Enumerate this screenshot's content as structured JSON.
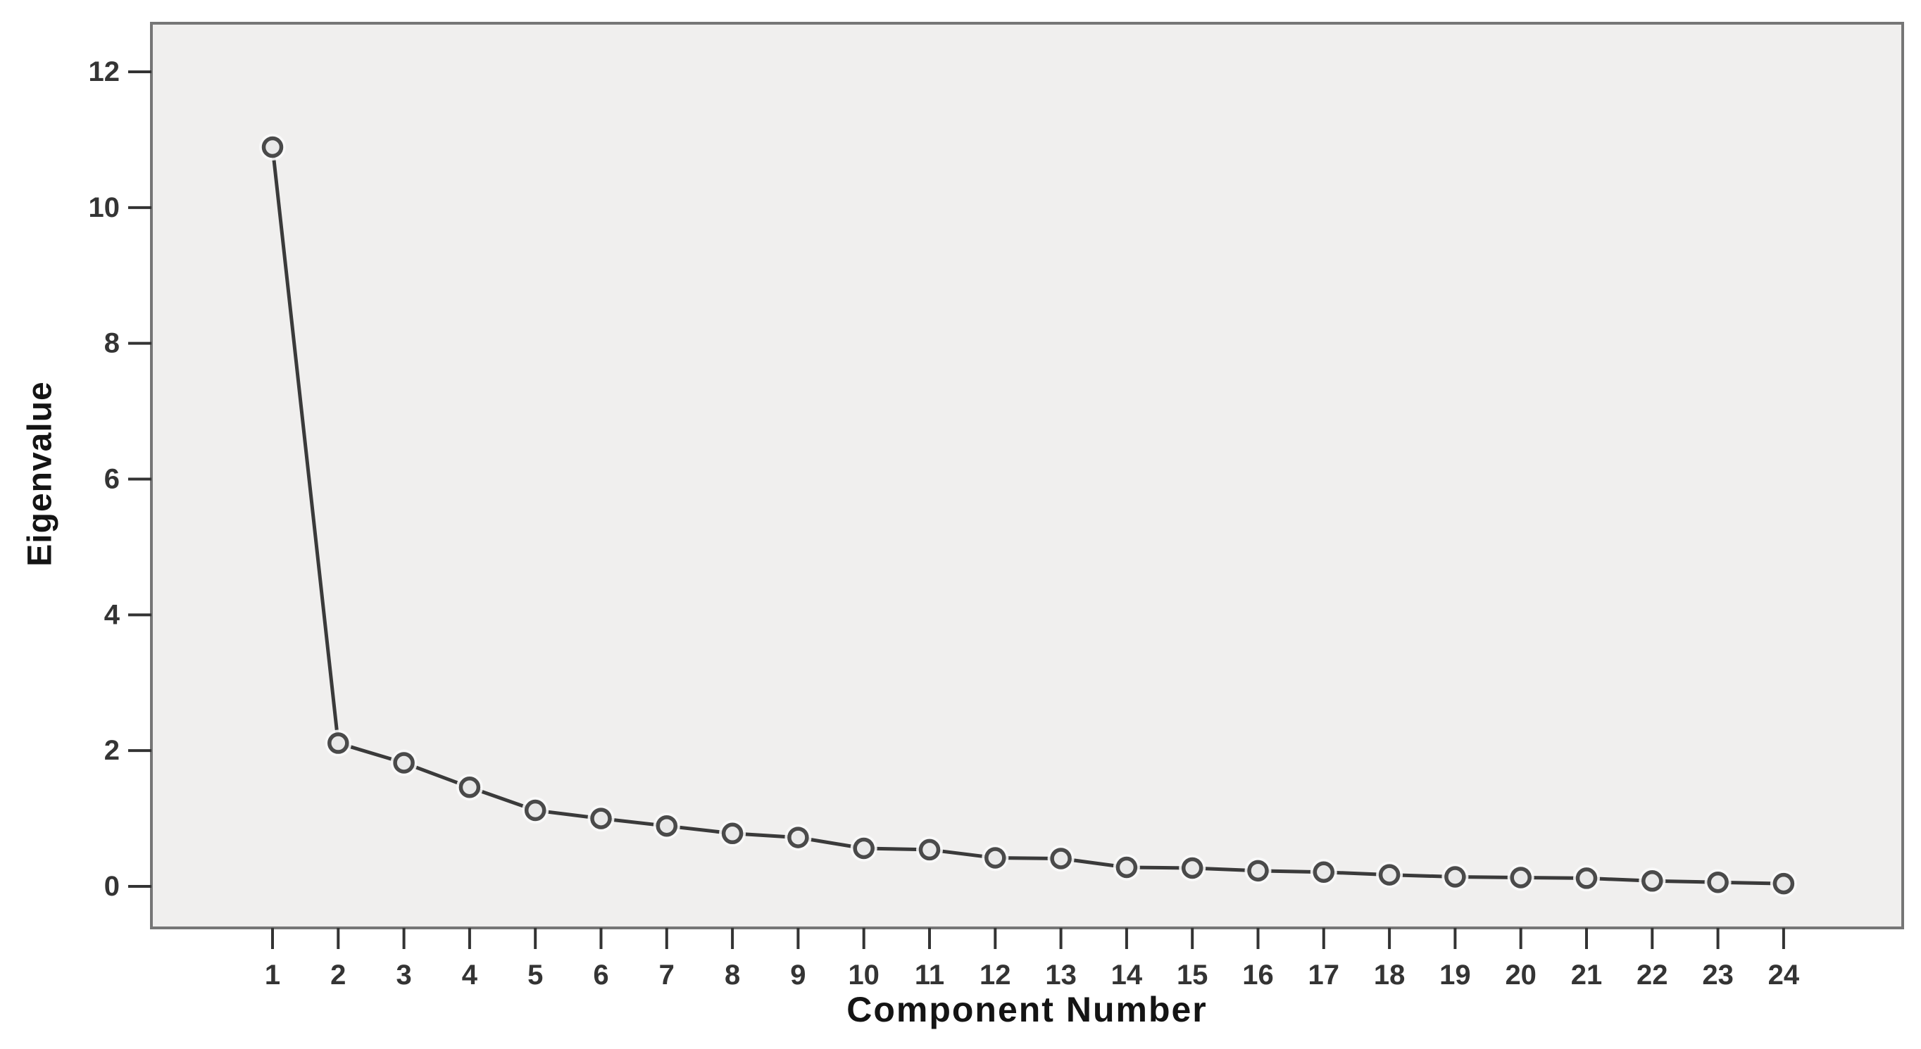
{
  "figure": {
    "background": "#ffffff",
    "plot_background": "#f0efee",
    "border_color": "#767676",
    "line_color": "#3a3a3a",
    "marker_stroke": "#4a4a4a",
    "marker_fill": "#e9e9e9",
    "marker_halo": "#fafafa",
    "tick_color": "#333333",
    "tick_label_color": "#343434",
    "axis_title_color": "#141414"
  },
  "chart_data": {
    "type": "line",
    "title": "",
    "xlabel": "Component Number",
    "ylabel": "Eigenvalue",
    "marker": "open-circle",
    "grid": false,
    "legend": "none",
    "ylim": [
      0,
      12
    ],
    "y_ticks": [
      0,
      2,
      4,
      6,
      8,
      10,
      12
    ],
    "x_ticks": [
      1,
      2,
      3,
      4,
      5,
      6,
      7,
      8,
      9,
      10,
      11,
      12,
      13,
      14,
      15,
      16,
      17,
      18,
      19,
      20,
      21,
      22,
      23,
      24
    ],
    "series": [
      {
        "name": "Eigenvalue",
        "x": [
          1,
          2,
          3,
          4,
          5,
          6,
          7,
          8,
          9,
          10,
          11,
          12,
          13,
          14,
          15,
          16,
          17,
          18,
          19,
          20,
          21,
          22,
          23,
          24
        ],
        "values": [
          10.89,
          2.11,
          1.82,
          1.46,
          1.12,
          1.0,
          0.89,
          0.78,
          0.72,
          0.56,
          0.54,
          0.42,
          0.41,
          0.28,
          0.27,
          0.23,
          0.21,
          0.17,
          0.14,
          0.13,
          0.12,
          0.08,
          0.06,
          0.04
        ]
      }
    ]
  }
}
